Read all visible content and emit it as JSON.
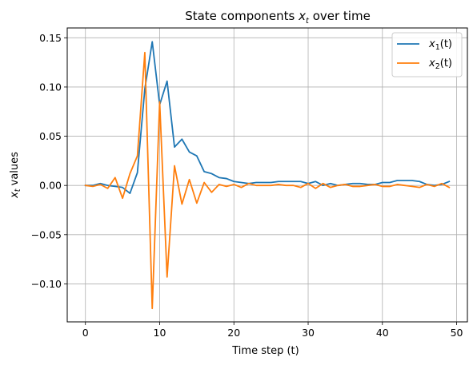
{
  "chart_data": {
    "type": "line",
    "title": {
      "prefix": "State components ",
      "math_base": "x",
      "math_sub": "t",
      "suffix": " over time"
    },
    "xlabel": "Time step (t)",
    "ylabel": {
      "math_base": "x",
      "math_sub": "t",
      "suffix": " values"
    },
    "xlim": [
      -2.45,
      51.45
    ],
    "ylim": [
      -0.1386,
      0.16
    ],
    "xticks": [
      0,
      10,
      20,
      30,
      40,
      50
    ],
    "xtick_labels": [
      "0",
      "10",
      "20",
      "30",
      "40",
      "50"
    ],
    "yticks": [
      -0.1,
      -0.05,
      0.0,
      0.05,
      0.1,
      0.15
    ],
    "ytick_labels": [
      "−0.10",
      "−0.05",
      "0.00",
      "0.05",
      "0.10",
      "0.15"
    ],
    "grid": true,
    "legend_position": "top-right",
    "x": [
      0,
      1,
      2,
      3,
      4,
      5,
      6,
      7,
      8,
      9,
      10,
      11,
      12,
      13,
      14,
      15,
      16,
      17,
      18,
      19,
      20,
      21,
      22,
      23,
      24,
      25,
      26,
      27,
      28,
      29,
      30,
      31,
      32,
      33,
      34,
      35,
      36,
      37,
      38,
      39,
      40,
      41,
      42,
      43,
      44,
      45,
      46,
      47,
      48,
      49
    ],
    "series": [
      {
        "name": "x_1(t)",
        "name_base": "x",
        "name_sub": "1",
        "name_suffix": "(t)",
        "color": "#1f77b4",
        "values": [
          0.0,
          0.0,
          0.002,
          0.0,
          -0.001,
          -0.002,
          -0.008,
          0.013,
          0.098,
          0.146,
          0.082,
          0.106,
          0.039,
          0.047,
          0.034,
          0.03,
          0.014,
          0.012,
          0.008,
          0.007,
          0.004,
          0.003,
          0.002,
          0.003,
          0.003,
          0.003,
          0.004,
          0.004,
          0.004,
          0.004,
          0.002,
          0.004,
          0.0,
          0.002,
          0.0,
          0.001,
          0.002,
          0.002,
          0.001,
          0.001,
          0.003,
          0.003,
          0.005,
          0.005,
          0.005,
          0.004,
          0.001,
          0.0,
          0.001,
          0.004
        ]
      },
      {
        "name": "x_2(t)",
        "name_base": "x",
        "name_sub": "2",
        "name_suffix": "(t)",
        "color": "#ff7f0e",
        "values": [
          0.0,
          -0.001,
          0.001,
          -0.003,
          0.008,
          -0.013,
          0.012,
          0.03,
          0.135,
          -0.125,
          0.085,
          -0.093,
          0.02,
          -0.019,
          0.006,
          -0.018,
          0.003,
          -0.007,
          0.001,
          -0.001,
          0.001,
          -0.002,
          0.002,
          0.0,
          0.0,
          0.0,
          0.001,
          0.0,
          0.0,
          -0.002,
          0.002,
          -0.003,
          0.002,
          -0.002,
          0.0,
          0.001,
          -0.001,
          -0.001,
          0.0,
          0.001,
          -0.001,
          -0.001,
          0.001,
          0.0,
          -0.001,
          -0.002,
          0.001,
          -0.001,
          0.002,
          -0.002
        ]
      }
    ]
  }
}
